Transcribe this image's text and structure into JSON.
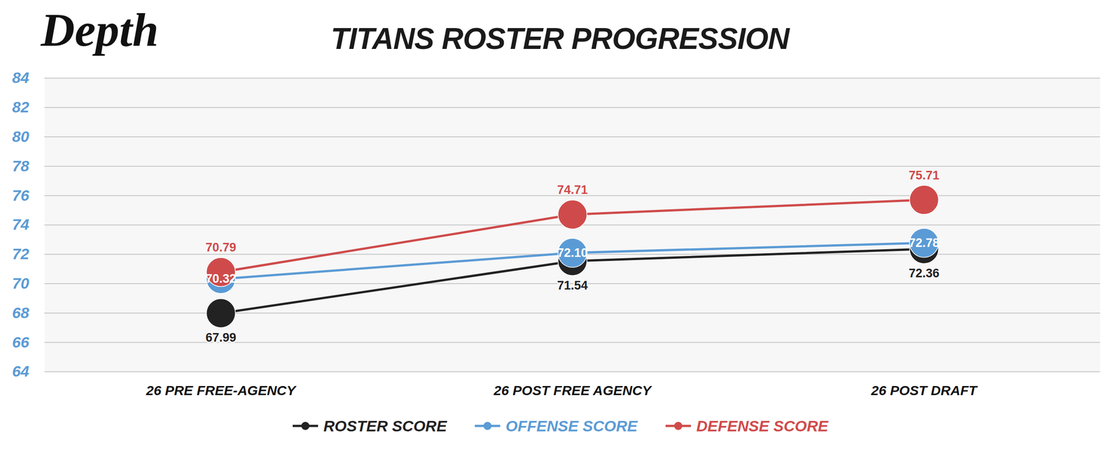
{
  "chart_data": {
    "type": "line",
    "title": "TITANS ROSTER PROGRESSION",
    "logo": "Depth",
    "categories": [
      "26 PRE FREE-AGENCY",
      "26 POST FREE AGENCY",
      "26 POST DRAFT"
    ],
    "series": [
      {
        "name": "ROSTER SCORE",
        "color": "#222222",
        "values": [
          67.99,
          71.54,
          72.36
        ],
        "value_labels": [
          "67.99",
          "71.54",
          "72.36"
        ]
      },
      {
        "name": "OFFENSE SCORE",
        "color": "#5b9bd5",
        "values": [
          70.32,
          72.1,
          72.78
        ],
        "value_labels": [
          "70.32",
          "72.10",
          "72.78"
        ]
      },
      {
        "name": "DEFENSE SCORE",
        "color": "#cf4b4b",
        "values": [
          70.79,
          74.71,
          75.71
        ],
        "value_labels": [
          "70.79",
          "74.71",
          "75.71"
        ]
      }
    ],
    "ylim": [
      64,
      84
    ],
    "yticks": [
      64,
      66,
      68,
      70,
      72,
      74,
      76,
      78,
      80,
      82,
      84
    ],
    "grid": true,
    "legend": "bottom",
    "data_labels": true,
    "marker": "circle"
  }
}
